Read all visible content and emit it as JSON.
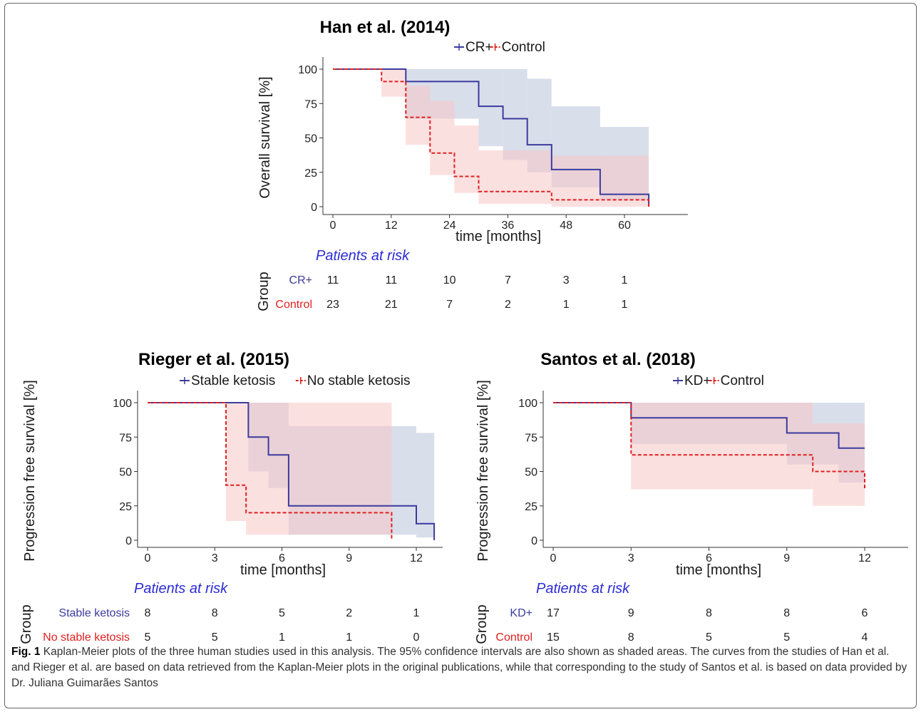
{
  "caption": {
    "label": "Fig. 1",
    "text": "Kaplan-Meier plots of the three human studies used in this analysis. The 95% confidence intervals are also shown as shaded areas. The curves from the studies of Han et al. and Rieger et al. are based on data retrieved from the Kaplan-Meier plots in the original publications, while that corresponding to the study of Santos et al. is based on data provided by Dr. Juliana Guimarães Santos"
  },
  "colors": {
    "blue": "#3b3b9e",
    "red": "#e02020",
    "blue_ci": "#c5cde0",
    "red_ci": "#f7c6c6",
    "risk_title": "#2b2bd6"
  },
  "chart_data": [
    {
      "type": "line",
      "title": "Han et al. (2014)",
      "xlabel": "time [months]",
      "ylabel": "Overall survival [%]",
      "xlim": [
        0,
        74
      ],
      "ylim": [
        0,
        100
      ],
      "xticks": [
        0,
        12,
        24,
        36,
        48,
        60
      ],
      "yticks": [
        0,
        25,
        50,
        75,
        100
      ],
      "legend_position": "top",
      "series": [
        {
          "name": "CR+",
          "color": "blue",
          "steps": [
            [
              0,
              100
            ],
            [
              15,
              100
            ],
            [
              15,
              91
            ],
            [
              30,
              91
            ],
            [
              30,
              73
            ],
            [
              35,
              73
            ],
            [
              35,
              64
            ],
            [
              40,
              64
            ],
            [
              40,
              45
            ],
            [
              45,
              45
            ],
            [
              45,
              27
            ],
            [
              55,
              27
            ],
            [
              55,
              9
            ],
            [
              65,
              9
            ],
            [
              65,
              0
            ]
          ],
          "ci": [
            [
              0,
              100,
              100
            ],
            [
              15,
              100,
              64
            ],
            [
              30,
              100,
              44
            ],
            [
              35,
              100,
              34
            ],
            [
              40,
              93,
              25
            ],
            [
              45,
              73,
              14
            ],
            [
              55,
              58,
              5
            ],
            [
              65,
              58,
              5
            ]
          ]
        },
        {
          "name": "Control",
          "color": "red",
          "steps": [
            [
              0,
              100
            ],
            [
              10,
              100
            ],
            [
              10,
              91
            ],
            [
              15,
              91
            ],
            [
              15,
              65
            ],
            [
              20,
              65
            ],
            [
              20,
              39
            ],
            [
              25,
              39
            ],
            [
              25,
              22
            ],
            [
              30,
              22
            ],
            [
              30,
              11
            ],
            [
              45,
              11
            ],
            [
              45,
              5
            ],
            [
              65,
              5
            ],
            [
              65,
              0
            ]
          ],
          "ci": [
            [
              0,
              100,
              100
            ],
            [
              10,
              100,
              80
            ],
            [
              15,
              88,
              45
            ],
            [
              20,
              77,
              23
            ],
            [
              25,
              59,
              10
            ],
            [
              30,
              41,
              2
            ],
            [
              45,
              37,
              0
            ],
            [
              65,
              37,
              0
            ]
          ]
        }
      ],
      "risk": {
        "title": "Patients at risk",
        "group_label": "Group",
        "rows": [
          {
            "label": "CR+",
            "color": "blue",
            "values": [
              "11",
              "11",
              "10",
              "7",
              "3",
              "1"
            ]
          },
          {
            "label": "Control",
            "color": "red",
            "values": [
              "23",
              "21",
              "7",
              "2",
              "1",
              "1"
            ]
          }
        ]
      }
    },
    {
      "type": "line",
      "title": "Rieger et al. (2015)",
      "xlabel": "time [months]",
      "ylabel": "Progression free survival [%]",
      "xlim": [
        0,
        14.3
      ],
      "ylim": [
        0,
        100
      ],
      "xticks": [
        0,
        3,
        6,
        9,
        12
      ],
      "yticks": [
        0,
        25,
        50,
        75,
        100
      ],
      "legend_position": "top",
      "series": [
        {
          "name": "Stable ketosis",
          "color": "blue",
          "steps": [
            [
              0,
              100
            ],
            [
              4.5,
              100
            ],
            [
              4.5,
              75
            ],
            [
              5.4,
              75
            ],
            [
              5.4,
              62
            ],
            [
              6.3,
              62
            ],
            [
              6.3,
              25
            ],
            [
              12,
              25
            ],
            [
              12,
              12
            ],
            [
              12.8,
              12
            ],
            [
              12.8,
              0
            ]
          ],
          "ci": [
            [
              0,
              100,
              100
            ],
            [
              4.5,
              100,
              50
            ],
            [
              5.4,
              100,
              38
            ],
            [
              6.3,
              83,
              4
            ],
            [
              12,
              78,
              2
            ],
            [
              12.8,
              78,
              2
            ]
          ]
        },
        {
          "name": "No stable ketosis",
          "color": "red",
          "steps": [
            [
              0,
              100
            ],
            [
              3.5,
              100
            ],
            [
              3.5,
              40
            ],
            [
              4.4,
              40
            ],
            [
              4.4,
              20
            ],
            [
              10.9,
              20
            ],
            [
              10.9,
              0
            ]
          ],
          "ci": [
            [
              0,
              100,
              100
            ],
            [
              3.5,
              100,
              14
            ],
            [
              4.4,
              100,
              4
            ],
            [
              10.9,
              100,
              4
            ]
          ]
        }
      ],
      "risk": {
        "title": "Patients at risk",
        "group_label": "Group",
        "rows": [
          {
            "label": "Stable ketosis",
            "color": "blue",
            "values": [
              "8",
              "8",
              "5",
              "2",
              "1"
            ]
          },
          {
            "label": "No stable ketosis",
            "color": "red",
            "values": [
              "5",
              "5",
              "1",
              "1",
              "0"
            ]
          }
        ]
      }
    },
    {
      "type": "line",
      "title": "Santos et al. (2018)",
      "xlabel": "time [months]",
      "ylabel": "Progression free survival [%]",
      "xlim": [
        0,
        13.6
      ],
      "ylim": [
        0,
        100
      ],
      "xticks": [
        0,
        3,
        6,
        9,
        12
      ],
      "yticks": [
        0,
        25,
        50,
        75,
        100
      ],
      "legend_position": "top",
      "series": [
        {
          "name": "KD+",
          "color": "blue",
          "steps": [
            [
              0,
              100
            ],
            [
              3,
              100
            ],
            [
              3,
              89
            ],
            [
              9,
              89
            ],
            [
              9,
              78
            ],
            [
              11,
              78
            ],
            [
              11,
              67
            ],
            [
              12,
              67
            ]
          ],
          "ci": [
            [
              0,
              100,
              100
            ],
            [
              3,
              100,
              70
            ],
            [
              9,
              100,
              55
            ],
            [
              11,
              100,
              42
            ],
            [
              12,
              100,
              42
            ]
          ]
        },
        {
          "name": "Control",
          "color": "red",
          "steps": [
            [
              0,
              100
            ],
            [
              3,
              100
            ],
            [
              3,
              62
            ],
            [
              10,
              62
            ],
            [
              10,
              50
            ],
            [
              12,
              50
            ],
            [
              12,
              37
            ]
          ],
          "ci": [
            [
              0,
              100,
              100
            ],
            [
              3,
              100,
              37
            ],
            [
              10,
              85,
              25
            ],
            [
              12,
              85,
              25
            ]
          ]
        }
      ],
      "risk": {
        "title": "Patients at risk",
        "group_label": "Group",
        "rows": [
          {
            "label": "KD+",
            "color": "blue",
            "values": [
              "17",
              "9",
              "8",
              "8",
              "6"
            ]
          },
          {
            "label": "Control",
            "color": "red",
            "values": [
              "15",
              "8",
              "5",
              "5",
              "4"
            ]
          }
        ]
      }
    }
  ]
}
